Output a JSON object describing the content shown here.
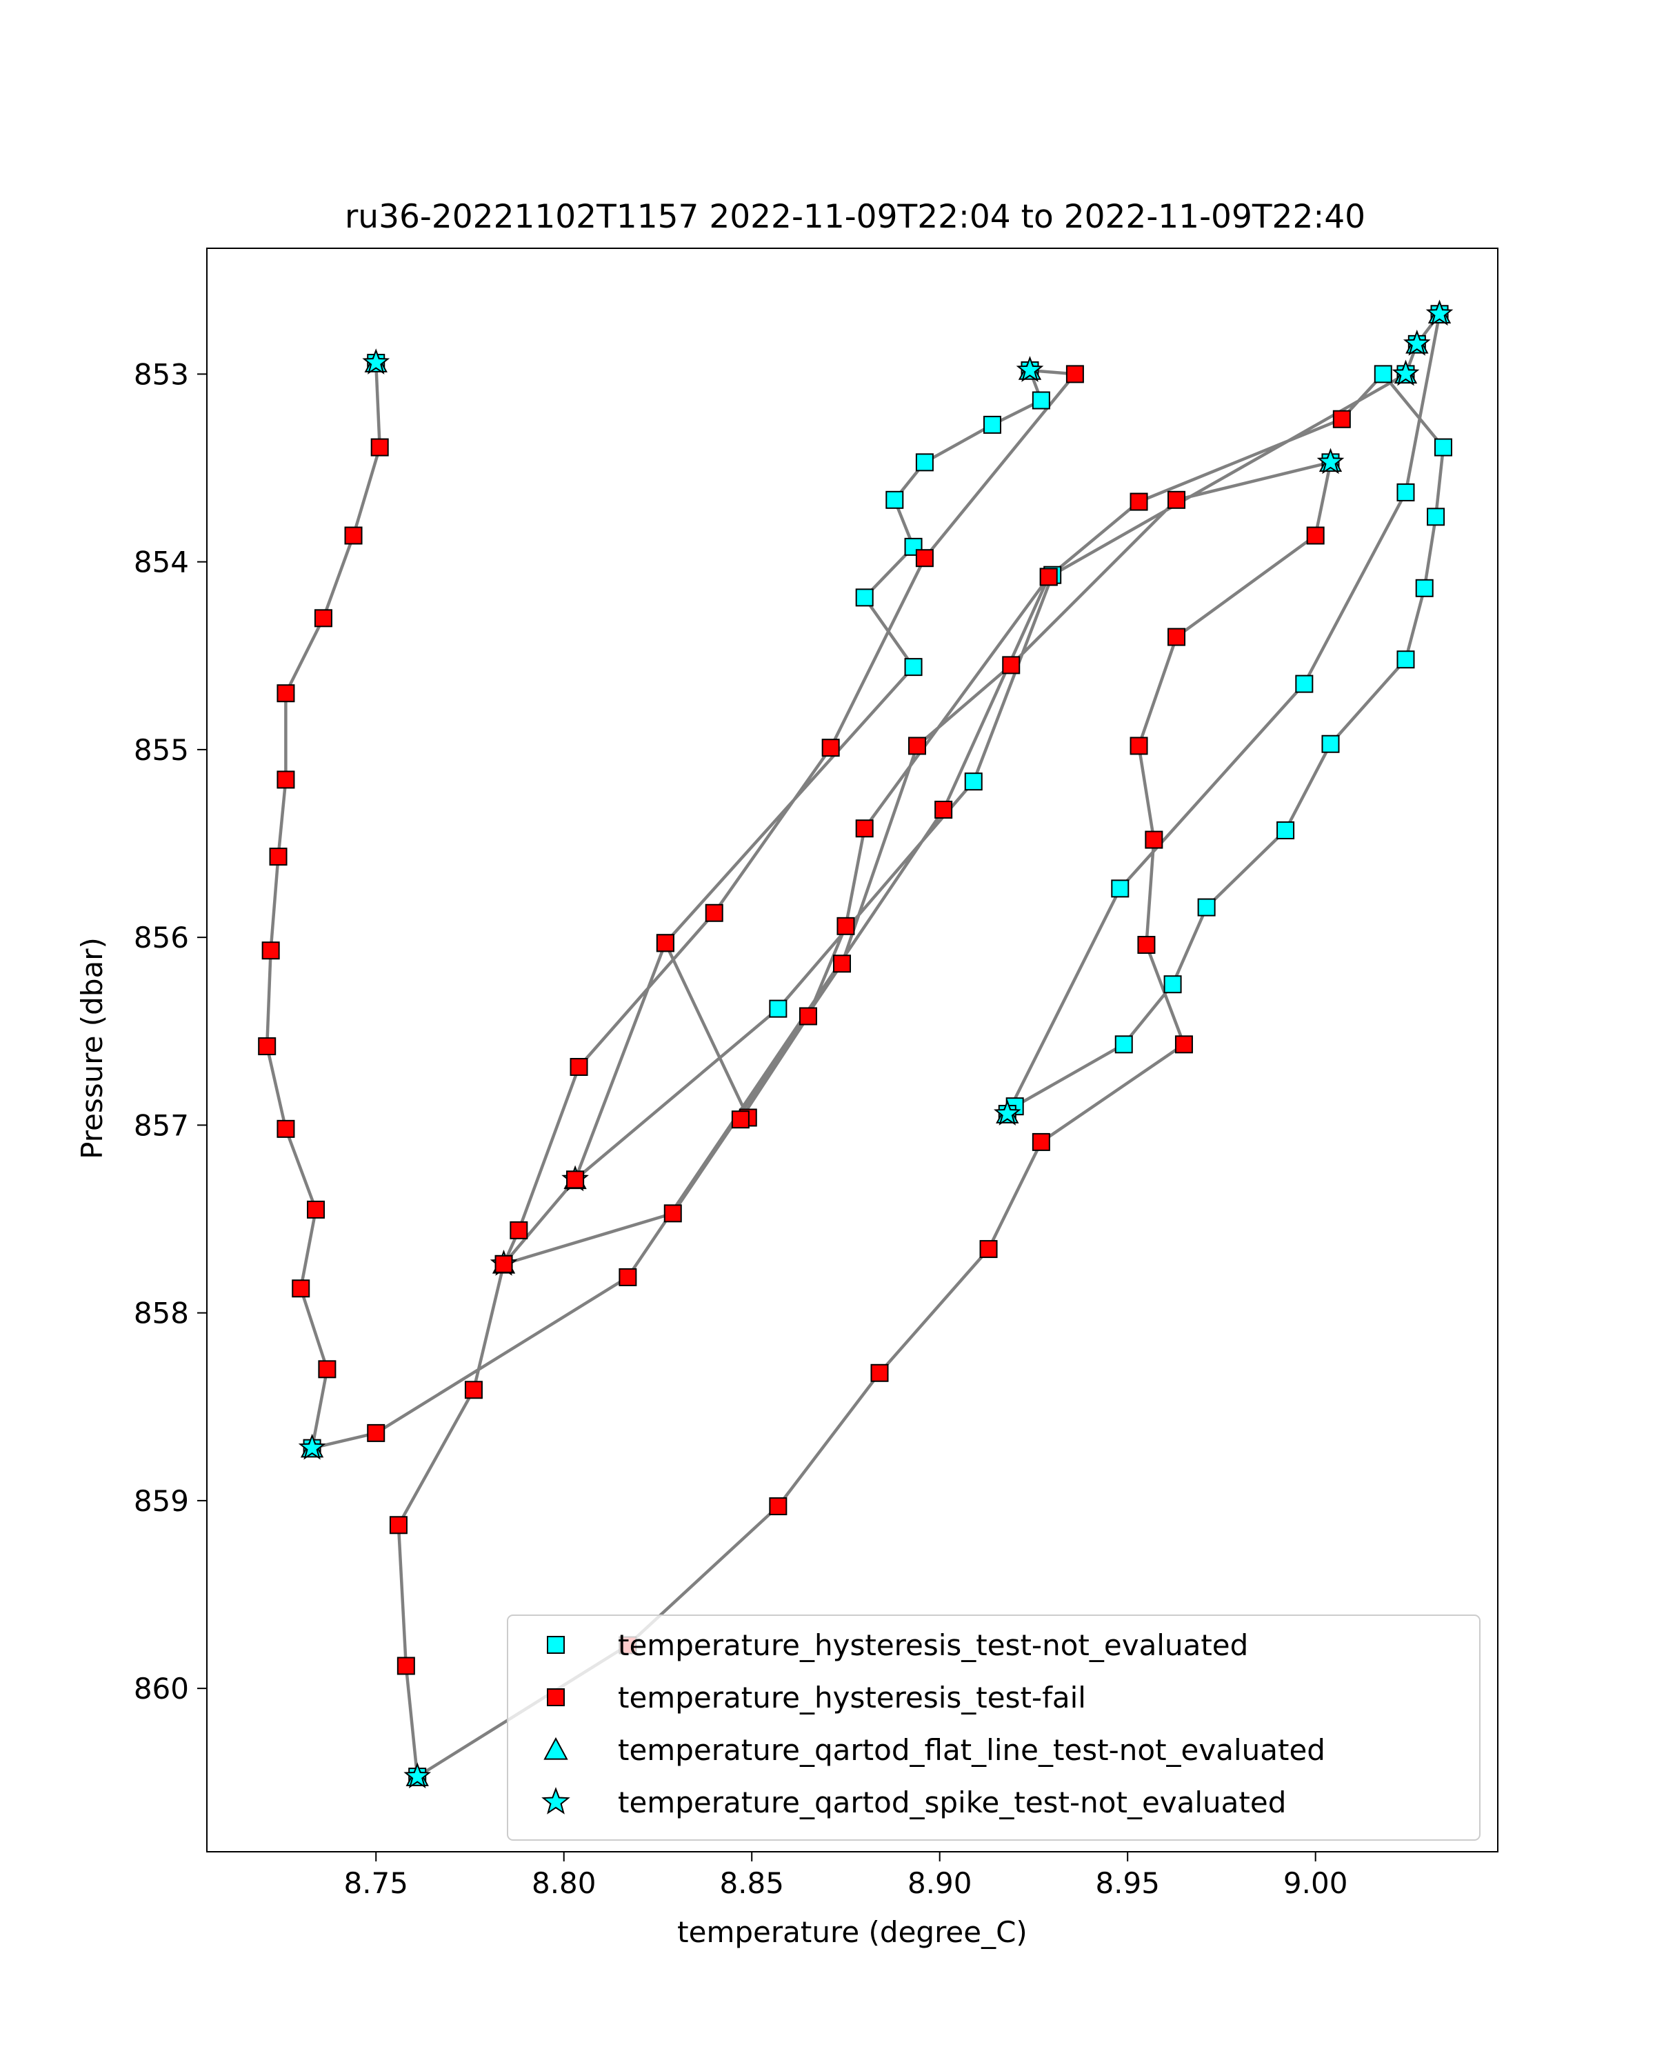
{
  "chart_data": {
    "type": "scatter",
    "title": "ru36-20221102T1157 2022-11-09T22:04 to 2022-11-09T22:40",
    "xlabel": "temperature (degree_C)",
    "ylabel": "Pressure (dbar)",
    "xlim": [
      8.705,
      9.0485
    ],
    "ylim": [
      860.87,
      852.33
    ],
    "y_inverted": true,
    "xticks": [
      "8.75",
      "8.80",
      "8.85",
      "8.90",
      "8.95",
      "9.00"
    ],
    "xtick_values": [
      8.75,
      8.8,
      8.85,
      8.9,
      8.95,
      9.0
    ],
    "yticks": [
      "853",
      "854",
      "855",
      "856",
      "857",
      "858",
      "859",
      "860"
    ],
    "ytick_values": [
      853,
      854,
      855,
      856,
      857,
      858,
      859,
      860
    ],
    "grid": false,
    "legend_position": "lower right",
    "line_color": "#808080",
    "colors": {
      "not_evaluated": "#00ffff",
      "fail": "#ff0000",
      "edge": "#000000"
    },
    "profile": [
      {
        "x": 8.75,
        "y": 852.94,
        "f": "spike"
      },
      {
        "x": 8.751,
        "y": 853.39,
        "f": "fail"
      },
      {
        "x": 8.744,
        "y": 853.86,
        "f": "fail"
      },
      {
        "x": 8.736,
        "y": 854.3,
        "f": "fail"
      },
      {
        "x": 8.726,
        "y": 854.7,
        "f": "fail"
      },
      {
        "x": 8.726,
        "y": 855.16,
        "f": "fail"
      },
      {
        "x": 8.724,
        "y": 855.57,
        "f": "fail"
      },
      {
        "x": 8.722,
        "y": 856.07,
        "f": "fail"
      },
      {
        "x": 8.721,
        "y": 856.58,
        "f": "fail"
      },
      {
        "x": 8.726,
        "y": 857.02,
        "f": "fail"
      },
      {
        "x": 8.734,
        "y": 857.45,
        "f": "fail"
      },
      {
        "x": 8.73,
        "y": 857.87,
        "f": "fail"
      },
      {
        "x": 8.737,
        "y": 858.3,
        "f": "fail"
      },
      {
        "x": 8.733,
        "y": 858.72,
        "f": "spike"
      },
      {
        "x": 8.75,
        "y": 858.64,
        "f": "fail"
      },
      {
        "x": 8.817,
        "y": 857.81,
        "f": "fail"
      },
      {
        "x": 8.901,
        "y": 855.32,
        "f": "fail"
      },
      {
        "x": 8.929,
        "y": 854.08,
        "f": "fail"
      },
      {
        "x": 8.953,
        "y": 853.68,
        "f": "fail"
      },
      {
        "x": 9.007,
        "y": 853.24,
        "f": "fail"
      },
      {
        "x": 9.018,
        "y": 853.0,
        "f": "hyst"
      },
      {
        "x": 9.034,
        "y": 853.39,
        "f": "hyst"
      },
      {
        "x": 9.032,
        "y": 853.76,
        "f": "hyst"
      },
      {
        "x": 9.029,
        "y": 854.14,
        "f": "hyst"
      },
      {
        "x": 9.024,
        "y": 854.52,
        "f": "hyst"
      },
      {
        "x": 9.004,
        "y": 854.97,
        "f": "hyst"
      },
      {
        "x": 8.992,
        "y": 855.43,
        "f": "hyst"
      },
      {
        "x": 8.971,
        "y": 855.84,
        "f": "hyst"
      },
      {
        "x": 8.962,
        "y": 856.25,
        "f": "hyst"
      },
      {
        "x": 8.949,
        "y": 856.57,
        "f": "hyst"
      },
      {
        "x": 8.92,
        "y": 856.9,
        "f": "hyst"
      },
      {
        "x": 8.918,
        "y": 856.94,
        "f": "spike"
      },
      {
        "x": 8.948,
        "y": 855.74,
        "f": "hyst"
      },
      {
        "x": 8.997,
        "y": 854.65,
        "f": "hyst"
      },
      {
        "x": 9.024,
        "y": 853.63,
        "f": "hyst"
      },
      {
        "x": 9.033,
        "y": 852.68,
        "f": "spike"
      },
      {
        "x": 9.027,
        "y": 852.84,
        "f": "spike"
      },
      {
        "x": 9.024,
        "y": 853.0,
        "f": "spike"
      },
      {
        "x": 8.93,
        "y": 854.07,
        "f": "hyst"
      },
      {
        "x": 8.909,
        "y": 855.17,
        "f": "hyst"
      },
      {
        "x": 8.857,
        "y": 856.38,
        "f": "hyst"
      },
      {
        "x": 8.803,
        "y": 857.29,
        "f": "spike"
      },
      {
        "x": 8.827,
        "y": 856.03,
        "f": "hyst"
      },
      {
        "x": 8.893,
        "y": 854.56,
        "f": "hyst"
      },
      {
        "x": 8.88,
        "y": 854.19,
        "f": "hyst"
      },
      {
        "x": 8.893,
        "y": 853.92,
        "f": "hyst"
      },
      {
        "x": 8.888,
        "y": 853.67,
        "f": "hyst"
      },
      {
        "x": 8.896,
        "y": 853.47,
        "f": "hyst"
      },
      {
        "x": 8.914,
        "y": 853.27,
        "f": "hyst"
      },
      {
        "x": 8.927,
        "y": 853.14,
        "f": "hyst"
      },
      {
        "x": 8.924,
        "y": 852.98,
        "f": "spike"
      },
      {
        "x": 8.936,
        "y": 853.0,
        "f": "fail"
      },
      {
        "x": 8.896,
        "y": 853.98,
        "f": "fail"
      },
      {
        "x": 8.871,
        "y": 854.99,
        "f": "fail"
      },
      {
        "x": 8.84,
        "y": 855.87,
        "f": "fail"
      },
      {
        "x": 8.804,
        "y": 856.69,
        "f": "fail"
      },
      {
        "x": 8.788,
        "y": 857.56,
        "f": "fail"
      },
      {
        "x": 8.784,
        "y": 857.74,
        "f": "spike"
      },
      {
        "x": 8.829,
        "y": 857.47,
        "f": "fail"
      },
      {
        "x": 8.874,
        "y": 856.14,
        "f": "fail"
      },
      {
        "x": 8.894,
        "y": 854.98,
        "f": "fail"
      },
      {
        "x": 8.919,
        "y": 854.55,
        "f": "fail"
      },
      {
        "x": 8.963,
        "y": 853.67,
        "f": "fail"
      },
      {
        "x": 9.004,
        "y": 853.47,
        "f": "spike"
      },
      {
        "x": 9.0,
        "y": 853.86,
        "f": "fail"
      },
      {
        "x": 8.963,
        "y": 854.4,
        "f": "fail"
      },
      {
        "x": 8.953,
        "y": 854.98,
        "f": "fail"
      },
      {
        "x": 8.957,
        "y": 855.48,
        "f": "fail"
      },
      {
        "x": 8.955,
        "y": 856.04,
        "f": "fail"
      },
      {
        "x": 8.965,
        "y": 856.57,
        "f": "fail"
      },
      {
        "x": 8.927,
        "y": 857.09,
        "f": "fail"
      },
      {
        "x": 8.913,
        "y": 857.66,
        "f": "fail"
      },
      {
        "x": 8.884,
        "y": 858.32,
        "f": "fail"
      },
      {
        "x": 8.857,
        "y": 859.03,
        "f": "fail"
      },
      {
        "x": 8.817,
        "y": 859.77,
        "f": "fail"
      },
      {
        "x": 8.761,
        "y": 860.47,
        "f": "spike"
      },
      {
        "x": 8.758,
        "y": 859.88,
        "f": "fail"
      },
      {
        "x": 8.756,
        "y": 859.13,
        "f": "fail"
      },
      {
        "x": 8.776,
        "y": 858.41,
        "f": "fail"
      },
      {
        "x": 8.784,
        "y": 857.74,
        "f": "fail"
      },
      {
        "x": 8.803,
        "y": 857.29,
        "f": "fail"
      },
      {
        "x": 8.827,
        "y": 856.03,
        "f": "fail"
      },
      {
        "x": 8.849,
        "y": 856.96,
        "f": "fail"
      },
      {
        "x": 8.847,
        "y": 856.97,
        "f": "fail"
      },
      {
        "x": 8.865,
        "y": 856.42,
        "f": "fail"
      },
      {
        "x": 8.875,
        "y": 855.94,
        "f": "fail"
      },
      {
        "x": 8.88,
        "y": 855.42,
        "f": "fail"
      },
      {
        "x": 8.929,
        "y": 854.08,
        "f": "fail"
      }
    ],
    "legend": [
      {
        "label": "temperature_hysteresis_test-not_evaluated",
        "marker": "square",
        "color": "#00ffff"
      },
      {
        "label": "temperature_hysteresis_test-fail",
        "marker": "square",
        "color": "#ff0000"
      },
      {
        "label": "temperature_qartod_flat_line_test-not_evaluated",
        "marker": "triangle",
        "color": "#00ffff"
      },
      {
        "label": "temperature_qartod_spike_test-not_evaluated",
        "marker": "star",
        "color": "#00ffff"
      }
    ]
  }
}
